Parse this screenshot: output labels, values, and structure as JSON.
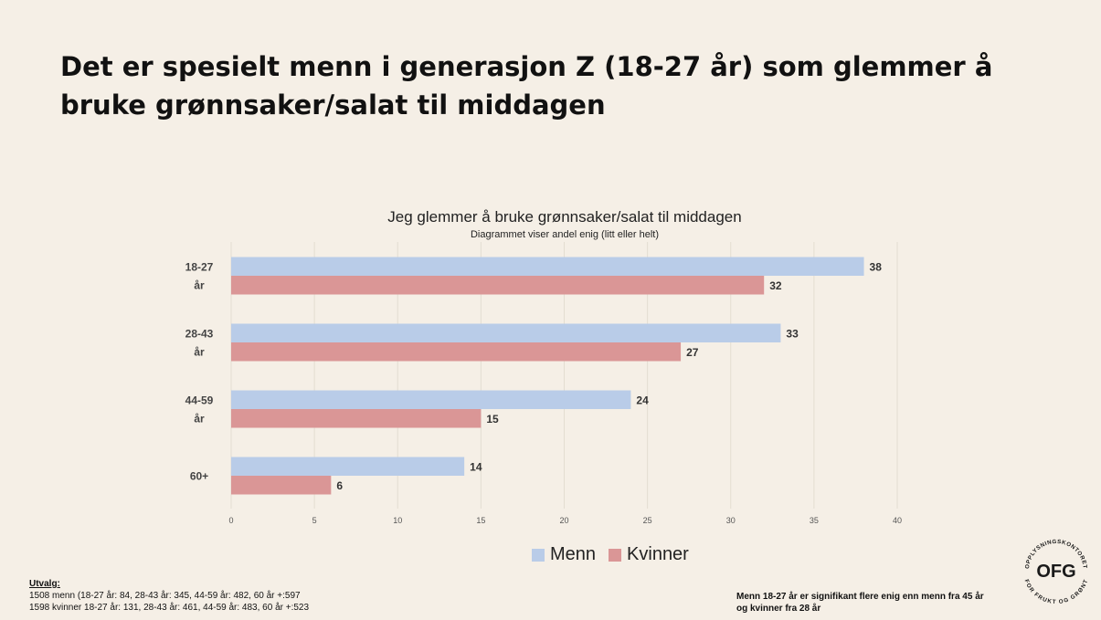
{
  "slide": {
    "title": "Det er spesielt menn i generasjon Z (18-27 år) som glemmer å bruke grønnsaker/salat til middagen"
  },
  "chart_data": {
    "type": "bar",
    "orientation": "horizontal",
    "title": "Jeg glemmer å bruke grønnsaker/salat til middagen",
    "subtitle": "Diagrammet viser andel enig (litt eller helt)",
    "categories": [
      [
        "18-27",
        "år"
      ],
      [
        "28-43",
        "år"
      ],
      [
        "44-59",
        "år"
      ],
      [
        "60+"
      ]
    ],
    "series": [
      {
        "name": "Menn",
        "color": "#b9cce8",
        "values": [
          38,
          33,
          24,
          14
        ]
      },
      {
        "name": "Kvinner",
        "color": "#da9696",
        "values": [
          32,
          27,
          15,
          6
        ]
      }
    ],
    "xlim": [
      0,
      40
    ],
    "xticks": [
      0,
      5,
      10,
      15,
      20,
      25,
      30,
      35,
      40
    ],
    "grid": true,
    "legend_position": "bottom"
  },
  "footnotes": {
    "utvalg_label": "Utvalg:",
    "utvalg_lines": [
      "1508 menn (18-27 år: 84, 28-43 år: 345, 44-59 år: 482, 60 år +:597",
      "1598 kvinner 18-27 år: 131, 28-43 år: 461, 44-59 år: 483, 60 år +:523"
    ],
    "significance_lines": [
      "Menn 18-27 år er signifikant flere enig enn menn fra 45 år",
      "og kvinner fra 28 år"
    ]
  },
  "logo": {
    "text": "OFG",
    "ring_top": "OPPLYSNINGSKONTORET",
    "ring_bottom": "FOR FRUKT OG GRØNT",
    "color": "#1a1a1a"
  }
}
